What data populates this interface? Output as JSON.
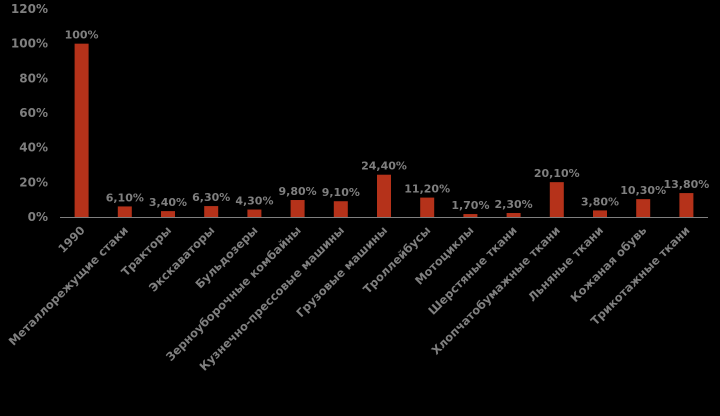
{
  "chart_data": {
    "type": "bar",
    "title": "",
    "xlabel": "",
    "ylabel": "",
    "ylim": [
      0,
      120
    ],
    "yticks": [
      "0%",
      "20%",
      "40%",
      "60%",
      "80%",
      "100%",
      "120%"
    ],
    "grid": false,
    "legend": "none",
    "categories": [
      "1990",
      "Металлорежущие стаки",
      "Тракторы",
      "Экскаваторы",
      "Бульдозеры",
      "Зерноуборочные комбайны",
      "Кузнечно-прессовые машины",
      "Грузовые машины",
      "Троллейбусы",
      "Мотоциклы",
      "Шерстяные ткани",
      "Хлопчатобумажные ткани",
      "Льняные ткани",
      "Кожаная обувь",
      "Трикотажные ткани"
    ],
    "values": [
      100,
      6.1,
      3.4,
      6.3,
      4.3,
      9.8,
      9.1,
      24.4,
      11.2,
      1.7,
      2.3,
      20.1,
      3.8,
      10.3,
      13.8
    ],
    "data_labels": [
      "100%",
      "6,10%",
      "3,40%",
      "6,30%",
      "4,30%",
      "9,80%",
      "9,10%",
      "24,40%",
      "11,20%",
      "1,70%",
      "2,30%",
      "20,10%",
      "3,80%",
      "10,30%",
      "13,80%"
    ],
    "colors": {
      "bar": "#b5321a",
      "axis": "#7f7f7f",
      "text": "#7f7f7f",
      "background": "#000000"
    }
  }
}
